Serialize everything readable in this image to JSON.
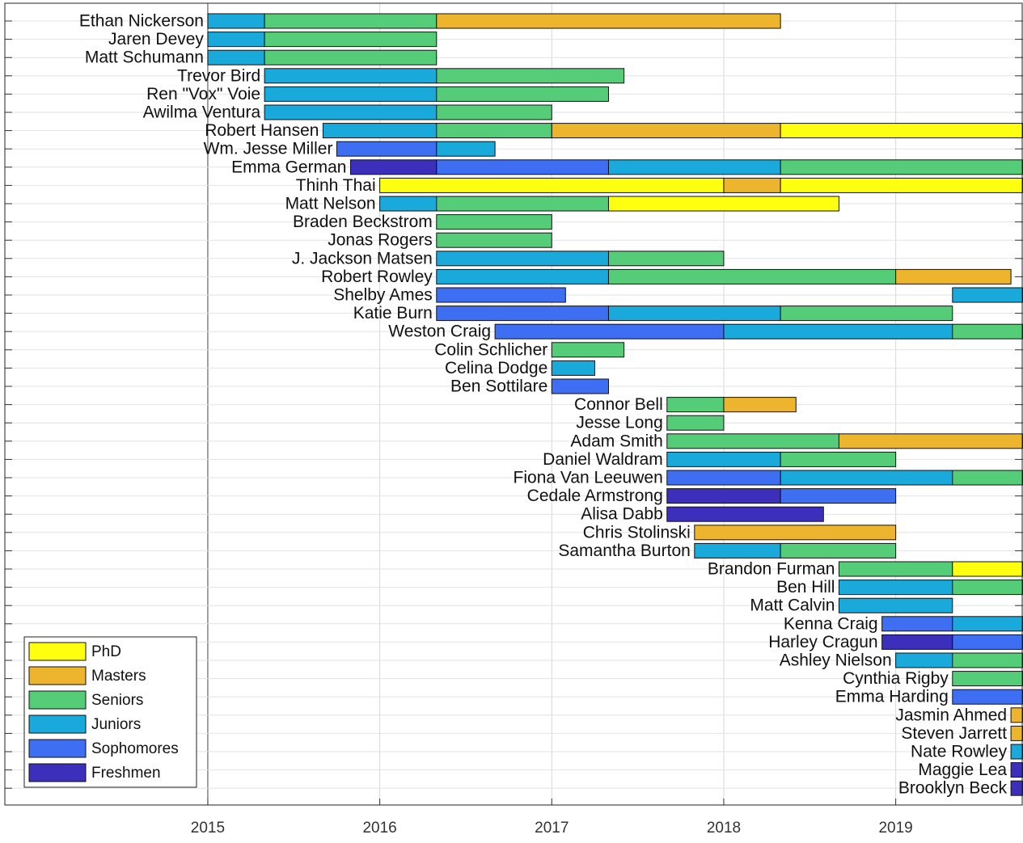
{
  "chart_data": {
    "type": "gantt",
    "xlim": [
      2013.82,
      2019.74
    ],
    "xticks": [
      2015,
      2016,
      2017,
      2018,
      2019
    ],
    "grid": true,
    "legend": "lower left",
    "series": [
      {
        "name": "PhD",
        "color": "#ffff10"
      },
      {
        "name": "Masters",
        "color": "#edb42e"
      },
      {
        "name": "Seniors",
        "color": "#55cd78"
      },
      {
        "name": "Juniors",
        "color": "#1aa9db"
      },
      {
        "name": "Sophomores",
        "color": "#3e6ff3"
      },
      {
        "name": "Freshmen",
        "color": "#3b2fbb"
      }
    ],
    "rows": [
      {
        "name": "Ethan Nickerson",
        "segments": [
          {
            "stage": 3,
            "start": 2015,
            "end": 2015.33
          },
          {
            "stage": 2,
            "start": 2015.33,
            "end": 2016.33
          },
          {
            "stage": 1,
            "start": 2016.33,
            "end": 2018.33
          }
        ]
      },
      {
        "name": "Jaren Devey",
        "segments": [
          {
            "stage": 3,
            "start": 2015,
            "end": 2015.33
          },
          {
            "stage": 2,
            "start": 2015.33,
            "end": 2016.33
          }
        ]
      },
      {
        "name": "Matt Schumann",
        "segments": [
          {
            "stage": 3,
            "start": 2015,
            "end": 2015.33
          },
          {
            "stage": 2,
            "start": 2015.33,
            "end": 2016.33
          }
        ]
      },
      {
        "name": "Trevor Bird",
        "segments": [
          {
            "stage": 3,
            "start": 2015.33,
            "end": 2016.33
          },
          {
            "stage": 2,
            "start": 2016.33,
            "end": 2017.42
          }
        ]
      },
      {
        "name": "Ren \"Vox\" Voie",
        "segments": [
          {
            "stage": 3,
            "start": 2015.33,
            "end": 2016.33
          },
          {
            "stage": 2,
            "start": 2016.33,
            "end": 2017.33
          }
        ]
      },
      {
        "name": "Awilma Ventura",
        "segments": [
          {
            "stage": 3,
            "start": 2015.33,
            "end": 2016.33
          },
          {
            "stage": 2,
            "start": 2016.33,
            "end": 2017
          }
        ]
      },
      {
        "name": "Robert Hansen",
        "segments": [
          {
            "stage": 3,
            "start": 2015.67,
            "end": 2016.33
          },
          {
            "stage": 2,
            "start": 2016.33,
            "end": 2017
          },
          {
            "stage": 1,
            "start": 2017,
            "end": 2018.33
          },
          {
            "stage": 0,
            "start": 2018.33,
            "end": 2019.74
          }
        ]
      },
      {
        "name": "Wm. Jesse Miller",
        "segments": [
          {
            "stage": 4,
            "start": 2015.75,
            "end": 2016.33
          },
          {
            "stage": 3,
            "start": 2016.33,
            "end": 2016.67
          }
        ]
      },
      {
        "name": "Emma German",
        "segments": [
          {
            "stage": 5,
            "start": 2015.83,
            "end": 2016.33
          },
          {
            "stage": 4,
            "start": 2016.33,
            "end": 2017.33
          },
          {
            "stage": 3,
            "start": 2017.33,
            "end": 2018.33
          },
          {
            "stage": 2,
            "start": 2018.33,
            "end": 2019.74
          }
        ]
      },
      {
        "name": "Thinh Thai",
        "segments": [
          {
            "stage": 0,
            "start": 2016,
            "end": 2018
          },
          {
            "stage": 1,
            "start": 2018,
            "end": 2018.33
          },
          {
            "stage": 0,
            "start": 2018.33,
            "end": 2019.74
          }
        ]
      },
      {
        "name": "Matt Nelson",
        "segments": [
          {
            "stage": 3,
            "start": 2016,
            "end": 2016.33
          },
          {
            "stage": 2,
            "start": 2016.33,
            "end": 2017.33
          },
          {
            "stage": 0,
            "start": 2017.33,
            "end": 2018.67
          }
        ]
      },
      {
        "name": "Braden Beckstrom",
        "segments": [
          {
            "stage": 2,
            "start": 2016.33,
            "end": 2017
          }
        ]
      },
      {
        "name": "Jonas Rogers",
        "segments": [
          {
            "stage": 2,
            "start": 2016.33,
            "end": 2017
          }
        ]
      },
      {
        "name": "J. Jackson Matsen",
        "segments": [
          {
            "stage": 3,
            "start": 2016.33,
            "end": 2017.33
          },
          {
            "stage": 2,
            "start": 2017.33,
            "end": 2018
          }
        ]
      },
      {
        "name": "Robert Rowley",
        "segments": [
          {
            "stage": 3,
            "start": 2016.33,
            "end": 2017.33
          },
          {
            "stage": 2,
            "start": 2017.33,
            "end": 2019
          },
          {
            "stage": 1,
            "start": 2019,
            "end": 2019.67
          }
        ]
      },
      {
        "name": "Shelby Ames",
        "segments": [
          {
            "stage": 4,
            "start": 2016.33,
            "end": 2017.08
          },
          {
            "stage": 3,
            "start": 2019.33,
            "end": 2019.74
          }
        ]
      },
      {
        "name": "Katie Burn",
        "segments": [
          {
            "stage": 4,
            "start": 2016.33,
            "end": 2017.33
          },
          {
            "stage": 3,
            "start": 2017.33,
            "end": 2018.33
          },
          {
            "stage": 2,
            "start": 2018.33,
            "end": 2019.33
          }
        ]
      },
      {
        "name": "Weston Craig",
        "segments": [
          {
            "stage": 4,
            "start": 2016.67,
            "end": 2018
          },
          {
            "stage": 3,
            "start": 2018,
            "end": 2019.33
          },
          {
            "stage": 2,
            "start": 2019.33,
            "end": 2019.74
          }
        ]
      },
      {
        "name": "Colin Schlicher",
        "segments": [
          {
            "stage": 2,
            "start": 2017,
            "end": 2017.42
          }
        ]
      },
      {
        "name": "Celina Dodge",
        "segments": [
          {
            "stage": 3,
            "start": 2017,
            "end": 2017.25
          }
        ]
      },
      {
        "name": "Ben Sottilare",
        "segments": [
          {
            "stage": 4,
            "start": 2017,
            "end": 2017.33
          }
        ]
      },
      {
        "name": "Connor Bell",
        "segments": [
          {
            "stage": 2,
            "start": 2017.67,
            "end": 2018
          },
          {
            "stage": 1,
            "start": 2018,
            "end": 2018.42
          }
        ]
      },
      {
        "name": "Jesse Long",
        "segments": [
          {
            "stage": 2,
            "start": 2017.67,
            "end": 2018
          }
        ]
      },
      {
        "name": "Adam Smith",
        "segments": [
          {
            "stage": 2,
            "start": 2017.67,
            "end": 2018.67
          },
          {
            "stage": 1,
            "start": 2018.67,
            "end": 2019.74
          }
        ]
      },
      {
        "name": "Daniel Waldram",
        "segments": [
          {
            "stage": 3,
            "start": 2017.67,
            "end": 2018.33
          },
          {
            "stage": 2,
            "start": 2018.33,
            "end": 2019
          }
        ]
      },
      {
        "name": "Fiona Van Leeuwen",
        "segments": [
          {
            "stage": 4,
            "start": 2017.67,
            "end": 2018.33
          },
          {
            "stage": 3,
            "start": 2018.33,
            "end": 2019.33
          },
          {
            "stage": 2,
            "start": 2019.33,
            "end": 2019.74
          }
        ]
      },
      {
        "name": "Cedale Armstrong",
        "segments": [
          {
            "stage": 5,
            "start": 2017.67,
            "end": 2018.33
          },
          {
            "stage": 4,
            "start": 2018.33,
            "end": 2019
          }
        ]
      },
      {
        "name": "Alisa Dabb",
        "segments": [
          {
            "stage": 5,
            "start": 2017.67,
            "end": 2018.58
          }
        ]
      },
      {
        "name": "Chris Stolinski",
        "segments": [
          {
            "stage": 1,
            "start": 2017.83,
            "end": 2019
          }
        ]
      },
      {
        "name": "Samantha Burton",
        "segments": [
          {
            "stage": 3,
            "start": 2017.83,
            "end": 2018.33
          },
          {
            "stage": 2,
            "start": 2018.33,
            "end": 2019
          }
        ]
      },
      {
        "name": "Brandon Furman",
        "segments": [
          {
            "stage": 2,
            "start": 2018.67,
            "end": 2019.33
          },
          {
            "stage": 0,
            "start": 2019.33,
            "end": 2019.74
          }
        ]
      },
      {
        "name": "Ben Hill",
        "segments": [
          {
            "stage": 3,
            "start": 2018.67,
            "end": 2019.33
          },
          {
            "stage": 2,
            "start": 2019.33,
            "end": 2019.74
          }
        ]
      },
      {
        "name": "Matt Calvin",
        "segments": [
          {
            "stage": 3,
            "start": 2018.67,
            "end": 2019.33
          }
        ]
      },
      {
        "name": "Kenna Craig",
        "segments": [
          {
            "stage": 4,
            "start": 2018.92,
            "end": 2019.33
          },
          {
            "stage": 3,
            "start": 2019.33,
            "end": 2019.74
          }
        ]
      },
      {
        "name": "Harley Cragun",
        "segments": [
          {
            "stage": 5,
            "start": 2018.92,
            "end": 2019.33
          },
          {
            "stage": 4,
            "start": 2019.33,
            "end": 2019.74
          }
        ]
      },
      {
        "name": "Ashley Nielson",
        "segments": [
          {
            "stage": 3,
            "start": 2019,
            "end": 2019.33
          },
          {
            "stage": 2,
            "start": 2019.33,
            "end": 2019.74
          }
        ]
      },
      {
        "name": "Cynthia Rigby",
        "segments": [
          {
            "stage": 2,
            "start": 2019.33,
            "end": 2019.74
          }
        ]
      },
      {
        "name": "Emma Harding",
        "segments": [
          {
            "stage": 4,
            "start": 2019.33,
            "end": 2019.74
          }
        ]
      },
      {
        "name": "Jasmin Ahmed",
        "segments": [
          {
            "stage": 1,
            "start": 2019.67,
            "end": 2019.74
          }
        ]
      },
      {
        "name": "Steven Jarrett",
        "segments": [
          {
            "stage": 1,
            "start": 2019.67,
            "end": 2019.74
          }
        ]
      },
      {
        "name": "Nate Rowley",
        "segments": [
          {
            "stage": 3,
            "start": 2019.67,
            "end": 2019.74
          }
        ]
      },
      {
        "name": "Maggie Lea",
        "segments": [
          {
            "stage": 5,
            "start": 2019.67,
            "end": 2019.74
          }
        ]
      },
      {
        "name": "Brooklyn Beck",
        "segments": [
          {
            "stage": 5,
            "start": 2019.67,
            "end": 2019.74
          }
        ]
      }
    ]
  }
}
